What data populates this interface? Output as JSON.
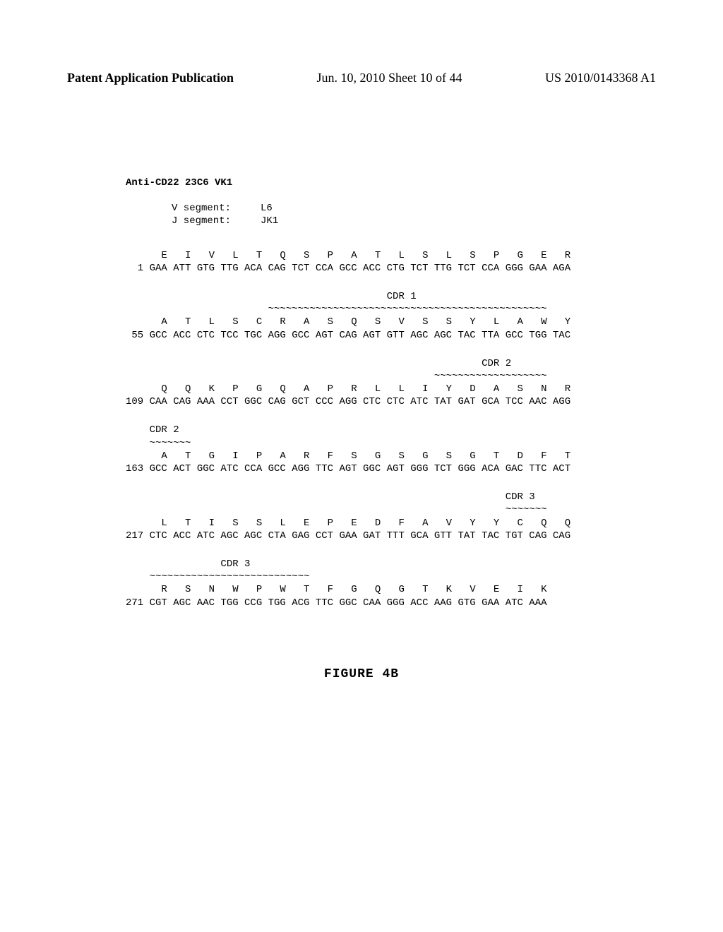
{
  "header": {
    "left": "Patent Application Publication",
    "center": "Jun. 10, 2010  Sheet 10 of 44",
    "right": "US 2010/0143368 A1"
  },
  "title": "Anti-CD22 23C6 VK1",
  "segments": {
    "line1": "V segment:     L6",
    "line2": "J segment:     JK1"
  },
  "block1": {
    "aa": "      E   I   V   L   T   Q   S   P   A   T   L   S   L   S   P   G   E   R",
    "nt": "  1 GAA ATT GTG TTG ACA CAG TCT CCA GCC ACC CTG TCT TTG TCT CCA GGG GAA AGA"
  },
  "block2": {
    "cdr_label": "                                            CDR 1",
    "cdr_dashes": "                        ~~~~~~~~~~~~~~~~~~~~~~~~~~~~~~~~~~~~~~~~~~~~~~~",
    "aa": "      A   T   L   S   C   R   A   S   Q   S   V   S   S   Y   L   A   W   Y",
    "nt": " 55 GCC ACC CTC TCC TGC AGG GCC AGT CAG AGT GTT AGC AGC TAC TTA GCC TGG TAC"
  },
  "block3": {
    "cdr_label": "                                                            CDR 2",
    "cdr_dashes": "                                                    ~~~~~~~~~~~~~~~~~~~",
    "aa": "      Q   Q   K   P   G   Q   A   P   R   L   L   I   Y   D   A   S   N   R",
    "nt": "109 CAA CAG AAA CCT GGC CAG GCT CCC AGG CTC CTC ATC TAT GAT GCA TCC AAC AGG"
  },
  "block4": {
    "cdr_label": "    CDR 2",
    "cdr_dashes": "    ~~~~~~~",
    "aa": "      A   T   G   I   P   A   R   F   S   G   S   G   S   G   T   D   F   T",
    "nt": "163 GCC ACT GGC ATC CCA GCC AGG TTC AGT GGC AGT GGG TCT GGG ACA GAC TTC ACT"
  },
  "block5": {
    "cdr_label": "                                                                CDR 3",
    "cdr_dashes": "                                                                ~~~~~~~",
    "aa": "      L   T   I   S   S   L   E   P   E   D   F   A   V   Y   Y   C   Q   Q",
    "nt": "217 CTC ACC ATC AGC AGC CTA GAG CCT GAA GAT TTT GCA GTT TAT TAC TGT CAG CAG"
  },
  "block6": {
    "cdr_label": "                CDR 3",
    "cdr_dashes": "    ~~~~~~~~~~~~~~~~~~~~~~~~~~~",
    "aa": "      R   S   N   W   P   W   T   F   G   Q   G   T   K   V   E   I   K",
    "nt": "271 CGT AGC AAC TGG CCG TGG ACG TTC GGC CAA GGG ACC AAG GTG GAA ATC AAA"
  },
  "figure_label": "FIGURE 4B"
}
